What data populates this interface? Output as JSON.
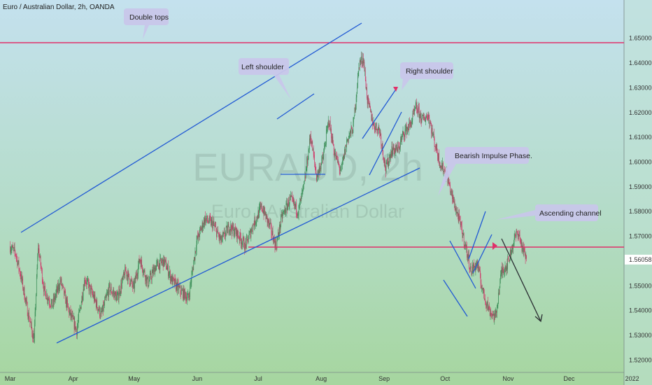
{
  "chart_data": {
    "type": "candlestick",
    "title": "Euro / Australian Dollar, 2h, OANDA",
    "watermark": {
      "symbol": "EURAUD, 2h",
      "name": "Euro / Australian Dollar"
    },
    "ylim": [
      1.515,
      1.657
    ],
    "y_ticks": [
      "1.65000",
      "1.64000",
      "1.63000",
      "1.62000",
      "1.61000",
      "1.60000",
      "1.59000",
      "1.58000",
      "1.57000",
      "1.56058",
      "1.55000",
      "1.54000",
      "1.53000",
      "1.52000"
    ],
    "current_price": "1.56058",
    "x_ticks": [
      "Mar",
      "Apr",
      "May",
      "Jun",
      "Jul",
      "Aug",
      "Sep",
      "Oct",
      "Nov",
      "Dec",
      "2022"
    ],
    "price_path_daily": [
      {
        "t": 0,
        "p": 1.566
      },
      {
        "t": 3,
        "p": 1.563
      },
      {
        "t": 6,
        "p": 1.552
      },
      {
        "t": 9,
        "p": 1.539
      },
      {
        "t": 12,
        "p": 1.528
      },
      {
        "t": 14,
        "p": 1.566
      },
      {
        "t": 17,
        "p": 1.548
      },
      {
        "t": 21,
        "p": 1.542
      },
      {
        "t": 25,
        "p": 1.552
      },
      {
        "t": 29,
        "p": 1.54
      },
      {
        "t": 33,
        "p": 1.532
      },
      {
        "t": 37,
        "p": 1.553
      },
      {
        "t": 41,
        "p": 1.546
      },
      {
        "t": 45,
        "p": 1.538
      },
      {
        "t": 49,
        "p": 1.549
      },
      {
        "t": 53,
        "p": 1.545
      },
      {
        "t": 57,
        "p": 1.556
      },
      {
        "t": 61,
        "p": 1.549
      },
      {
        "t": 64,
        "p": 1.561
      },
      {
        "t": 68,
        "p": 1.551
      },
      {
        "t": 72,
        "p": 1.558
      },
      {
        "t": 76,
        "p": 1.56
      },
      {
        "t": 80,
        "p": 1.552
      },
      {
        "t": 84,
        "p": 1.548
      },
      {
        "t": 88,
        "p": 1.545
      },
      {
        "t": 92,
        "p": 1.568
      },
      {
        "t": 96,
        "p": 1.577
      },
      {
        "t": 100,
        "p": 1.575
      },
      {
        "t": 104,
        "p": 1.568
      },
      {
        "t": 108,
        "p": 1.574
      },
      {
        "t": 112,
        "p": 1.571
      },
      {
        "t": 116,
        "p": 1.566
      },
      {
        "t": 120,
        "p": 1.575
      },
      {
        "t": 124,
        "p": 1.582
      },
      {
        "t": 128,
        "p": 1.574
      },
      {
        "t": 131,
        "p": 1.566
      },
      {
        "t": 134,
        "p": 1.578
      },
      {
        "t": 138,
        "p": 1.585
      },
      {
        "t": 142,
        "p": 1.58
      },
      {
        "t": 145,
        "p": 1.591
      },
      {
        "t": 148,
        "p": 1.611
      },
      {
        "t": 151,
        "p": 1.594
      },
      {
        "t": 154,
        "p": 1.601
      },
      {
        "t": 157,
        "p": 1.617
      },
      {
        "t": 160,
        "p": 1.603
      },
      {
        "t": 163,
        "p": 1.596
      },
      {
        "t": 166,
        "p": 1.609
      },
      {
        "t": 169,
        "p": 1.614
      },
      {
        "t": 172,
        "p": 1.64
      },
      {
        "t": 174,
        "p": 1.642
      },
      {
        "t": 176,
        "p": 1.625
      },
      {
        "t": 179,
        "p": 1.615
      },
      {
        "t": 182,
        "p": 1.613
      },
      {
        "t": 185,
        "p": 1.597
      },
      {
        "t": 188,
        "p": 1.605
      },
      {
        "t": 191,
        "p": 1.605
      },
      {
        "t": 194,
        "p": 1.612
      },
      {
        "t": 197,
        "p": 1.615
      },
      {
        "t": 200,
        "p": 1.622
      },
      {
        "t": 203,
        "p": 1.617
      },
      {
        "t": 206,
        "p": 1.619
      },
      {
        "t": 209,
        "p": 1.608
      },
      {
        "t": 212,
        "p": 1.599
      },
      {
        "t": 215,
        "p": 1.595
      },
      {
        "t": 218,
        "p": 1.585
      },
      {
        "t": 221,
        "p": 1.577
      },
      {
        "t": 224,
        "p": 1.567
      },
      {
        "t": 227,
        "p": 1.556
      },
      {
        "t": 230,
        "p": 1.559
      },
      {
        "t": 233,
        "p": 1.547
      },
      {
        "t": 236,
        "p": 1.54
      },
      {
        "t": 239,
        "p": 1.537
      },
      {
        "t": 242,
        "p": 1.556
      },
      {
        "t": 245,
        "p": 1.559
      },
      {
        "t": 248,
        "p": 1.568
      },
      {
        "t": 250,
        "p": 1.572
      },
      {
        "t": 252,
        "p": 1.566
      },
      {
        "t": 254,
        "p": 1.561
      }
    ],
    "horizontal_levels": [
      1.6414,
      1.5622
    ],
    "annotations": [
      "Double tops",
      "Left shoulder",
      "Right shoulder",
      "Bearish Impulse Phase.",
      "Ascending channel"
    ]
  }
}
